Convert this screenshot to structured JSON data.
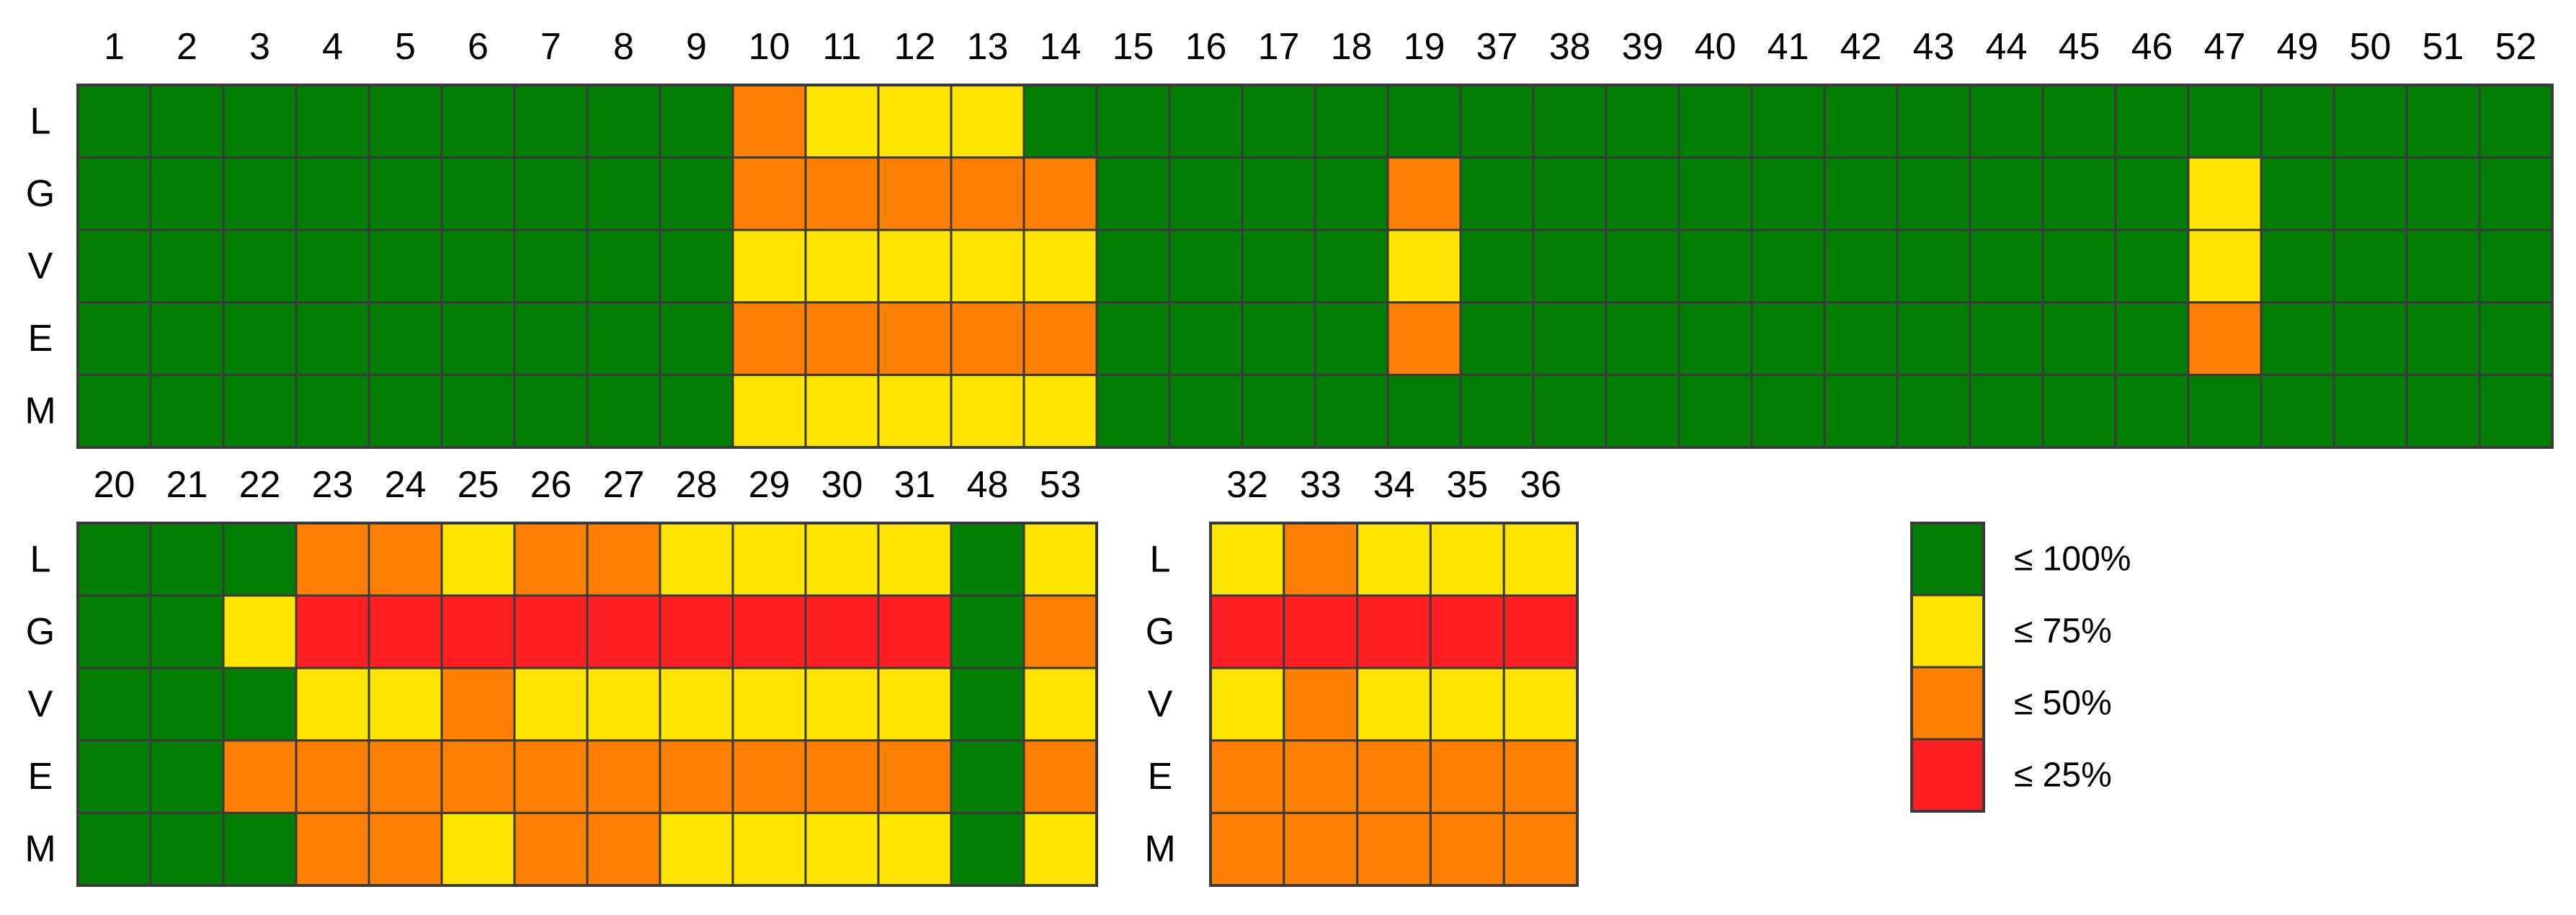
{
  "chart_data": {
    "type": "heatmap",
    "legend": {
      "position": "right",
      "items": [
        {
          "key": "g",
          "label": "≤ 100%",
          "color": "#037E04"
        },
        {
          "key": "y",
          "label": "≤ 75%",
          "color": "#FEE401"
        },
        {
          "key": "o",
          "label": "≤ 50%",
          "color": "#FD7F04"
        },
        {
          "key": "r",
          "label": "≤ 25%",
          "color": "#FF1F22"
        }
      ]
    },
    "panels": [
      {
        "rows": [
          "L",
          "G",
          "V",
          "E",
          "M"
        ],
        "columns": [
          "1",
          "2",
          "3",
          "4",
          "5",
          "6",
          "7",
          "8",
          "9",
          "10",
          "11",
          "12",
          "13",
          "14",
          "15",
          "16",
          "17",
          "18",
          "19",
          "37",
          "38",
          "39",
          "40",
          "41",
          "42",
          "43",
          "44",
          "45",
          "46",
          "47",
          "49",
          "50",
          "51",
          "52"
        ],
        "values": [
          [
            "g",
            "g",
            "g",
            "g",
            "g",
            "g",
            "g",
            "g",
            "g",
            "o",
            "y",
            "y",
            "y",
            "g",
            "g",
            "g",
            "g",
            "g",
            "g",
            "g",
            "g",
            "g",
            "g",
            "g",
            "g",
            "g",
            "g",
            "g",
            "g",
            "g",
            "g",
            "g",
            "g",
            "g"
          ],
          [
            "g",
            "g",
            "g",
            "g",
            "g",
            "g",
            "g",
            "g",
            "g",
            "o",
            "o",
            "o",
            "o",
            "o",
            "g",
            "g",
            "g",
            "g",
            "o",
            "g",
            "g",
            "g",
            "g",
            "g",
            "g",
            "g",
            "g",
            "g",
            "g",
            "y",
            "g",
            "g",
            "g",
            "g"
          ],
          [
            "g",
            "g",
            "g",
            "g",
            "g",
            "g",
            "g",
            "g",
            "g",
            "y",
            "y",
            "y",
            "y",
            "y",
            "g",
            "g",
            "g",
            "g",
            "y",
            "g",
            "g",
            "g",
            "g",
            "g",
            "g",
            "g",
            "g",
            "g",
            "g",
            "y",
            "g",
            "g",
            "g",
            "g"
          ],
          [
            "g",
            "g",
            "g",
            "g",
            "g",
            "g",
            "g",
            "g",
            "g",
            "o",
            "o",
            "o",
            "o",
            "o",
            "g",
            "g",
            "g",
            "g",
            "o",
            "g",
            "g",
            "g",
            "g",
            "g",
            "g",
            "g",
            "g",
            "g",
            "g",
            "o",
            "g",
            "g",
            "g",
            "g"
          ],
          [
            "g",
            "g",
            "g",
            "g",
            "g",
            "g",
            "g",
            "g",
            "g",
            "y",
            "y",
            "y",
            "y",
            "y",
            "g",
            "g",
            "g",
            "g",
            "g",
            "g",
            "g",
            "g",
            "g",
            "g",
            "g",
            "g",
            "g",
            "g",
            "g",
            "g",
            "g",
            "g",
            "g",
            "g"
          ]
        ]
      },
      {
        "rows": [
          "L",
          "G",
          "V",
          "E",
          "M"
        ],
        "columns": [
          "20",
          "21",
          "22",
          "23",
          "24",
          "25",
          "26",
          "27",
          "28",
          "29",
          "30",
          "31",
          "48",
          "53"
        ],
        "values": [
          [
            "g",
            "g",
            "g",
            "o",
            "o",
            "y",
            "o",
            "o",
            "y",
            "y",
            "y",
            "y",
            "g",
            "y"
          ],
          [
            "g",
            "g",
            "y",
            "r",
            "r",
            "r",
            "r",
            "r",
            "r",
            "r",
            "r",
            "r",
            "g",
            "o"
          ],
          [
            "g",
            "g",
            "g",
            "y",
            "y",
            "o",
            "y",
            "y",
            "y",
            "y",
            "y",
            "y",
            "g",
            "y"
          ],
          [
            "g",
            "g",
            "o",
            "o",
            "o",
            "o",
            "o",
            "o",
            "o",
            "o",
            "o",
            "o",
            "g",
            "o"
          ],
          [
            "g",
            "g",
            "g",
            "o",
            "o",
            "y",
            "o",
            "o",
            "y",
            "y",
            "y",
            "y",
            "g",
            "y"
          ]
        ]
      },
      {
        "rows": [
          "L",
          "G",
          "V",
          "E",
          "M"
        ],
        "columns": [
          "32",
          "33",
          "34",
          "35",
          "36"
        ],
        "values": [
          [
            "y",
            "o",
            "y",
            "y",
            "y"
          ],
          [
            "r",
            "r",
            "r",
            "r",
            "r"
          ],
          [
            "y",
            "o",
            "y",
            "y",
            "y"
          ],
          [
            "o",
            "o",
            "o",
            "o",
            "o"
          ],
          [
            "o",
            "o",
            "o",
            "o",
            "o"
          ]
        ]
      }
    ]
  }
}
